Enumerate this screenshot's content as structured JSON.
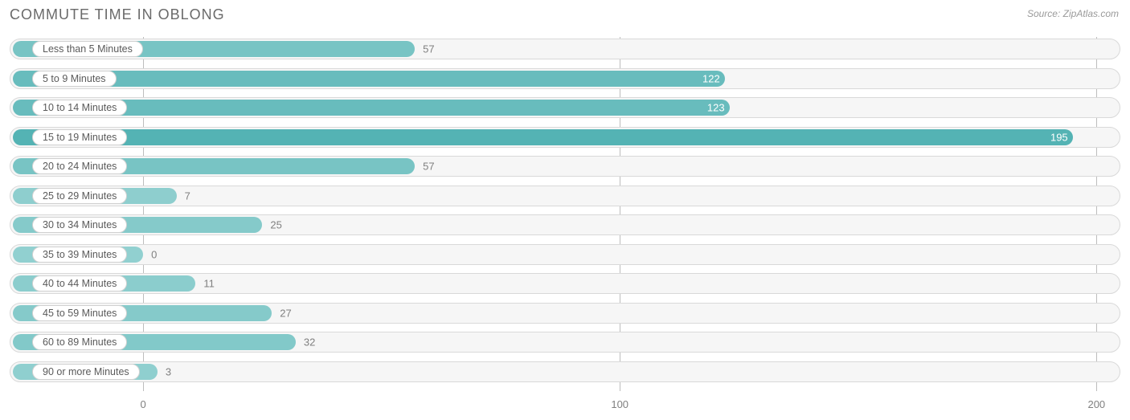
{
  "chart": {
    "type": "bar-horizontal",
    "title": "COMMUTE TIME IN OBLONG",
    "source": "Source: ZipAtlas.com",
    "background_color": "#ffffff",
    "track_fill": "#f6f6f6",
    "track_border": "#d9d9d9",
    "grid_color": "#bdbdbd",
    "label_color": "#5a5a5a",
    "value_color_outside": "#808080",
    "value_color_inside": "#ffffff",
    "title_color": "#6a6a6a",
    "source_color": "#9a9a9a",
    "title_fontsize": 18,
    "label_fontsize": 12.5,
    "value_fontsize": 13,
    "x_axis": {
      "min": -28,
      "max": 205,
      "ticks": [
        0,
        100,
        200
      ]
    },
    "rows": [
      {
        "label": "Less than 5 Minutes",
        "value": 57,
        "color": "#78c4c4",
        "value_placement": "outside"
      },
      {
        "label": "5 to 9 Minutes",
        "value": 122,
        "color": "#68bcbd",
        "value_placement": "inside"
      },
      {
        "label": "10 to 14 Minutes",
        "value": 123,
        "color": "#68bcbd",
        "value_placement": "inside"
      },
      {
        "label": "15 to 19 Minutes",
        "value": 195,
        "color": "#54b3b4",
        "value_placement": "inside"
      },
      {
        "label": "20 to 24 Minutes",
        "value": 57,
        "color": "#78c4c4",
        "value_placement": "outside"
      },
      {
        "label": "25 to 29 Minutes",
        "value": 7,
        "color": "#8ecece",
        "value_placement": "outside"
      },
      {
        "label": "30 to 34 Minutes",
        "value": 25,
        "color": "#85caca",
        "value_placement": "outside"
      },
      {
        "label": "35 to 39 Minutes",
        "value": 0,
        "color": "#91d0d0",
        "value_placement": "outside"
      },
      {
        "label": "40 to 44 Minutes",
        "value": 11,
        "color": "#8bcdcd",
        "value_placement": "outside"
      },
      {
        "label": "45 to 59 Minutes",
        "value": 27,
        "color": "#85caca",
        "value_placement": "outside"
      },
      {
        "label": "60 to 89 Minutes",
        "value": 32,
        "color": "#82c9c9",
        "value_placement": "outside"
      },
      {
        "label": "90 or more Minutes",
        "value": 3,
        "color": "#8fcfcf",
        "value_placement": "outside"
      }
    ]
  }
}
